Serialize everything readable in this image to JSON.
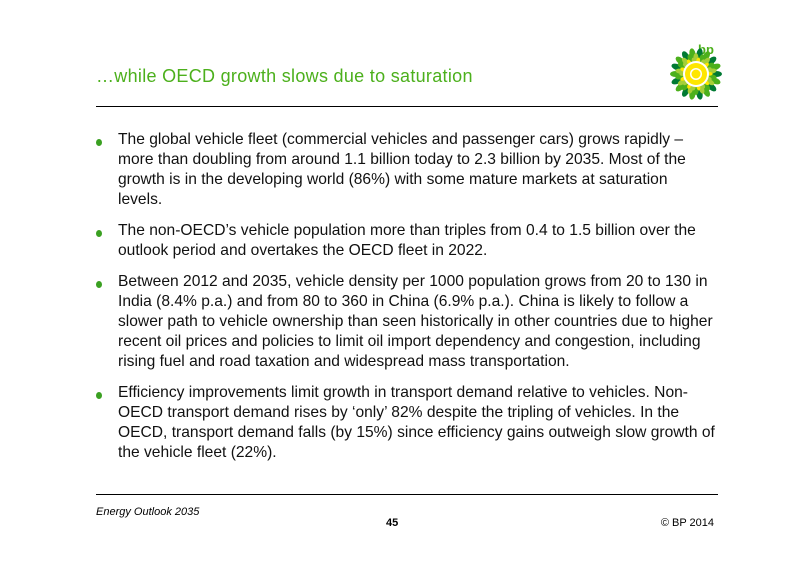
{
  "slide": {
    "title": "…while OECD growth slows due to saturation",
    "logo_text": "bp",
    "bullets": [
      "The global vehicle fleet (commercial vehicles and passenger cars) grows rapidly – more than doubling from around 1.1 billion today to 2.3 billion by 2035. Most of the growth is in the developing world (86%) with some mature markets at saturation levels.",
      "The non-OECD’s vehicle population more than triples from 0.4 to 1.5 billion over the outlook period and overtakes the OECD fleet in 2022.",
      "Between 2012 and 2035, vehicle density per 1000 population grows from 20 to 130 in India (8.4% p.a.) and from 80 to 360 in China (6.9% p.a.). China is likely to follow a slower path to vehicle ownership than seen historically in other countries due to higher recent oil prices and policies to limit oil import dependency and congestion, including rising fuel and road taxation and widespread mass transportation.",
      "Efficiency improvements limit growth in transport demand relative to vehicles. Non-OECD transport demand rises by ‘only’ 82% despite the tripling of vehicles. In the OECD, transport demand falls (by 15%) since efficiency gains outweigh slow growth of the vehicle fleet (22%)."
    ]
  },
  "footer": {
    "publication": "Energy Outlook 2035",
    "page_number": "45",
    "copyright": "© BP 2014"
  },
  "colors": {
    "accent_green": "#4cb01c",
    "logo_yellow": "#ffe600"
  },
  "icons": {
    "logo": "bp-helios-logo-icon",
    "bullet": "bullet-dot-icon"
  }
}
